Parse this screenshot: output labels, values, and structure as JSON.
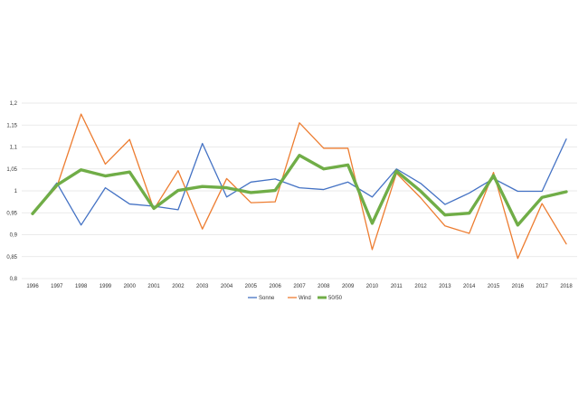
{
  "chart_data": {
    "type": "line",
    "x": [
      "1996",
      "1997",
      "1998",
      "1999",
      "2000",
      "2001",
      "2002",
      "2003",
      "2004",
      "2005",
      "2006",
      "2007",
      "2008",
      "2009",
      "2010",
      "2011",
      "2012",
      "2013",
      "2014",
      "2015",
      "2016",
      "2017",
      "2018"
    ],
    "y_ticks": [
      "0,8",
      "0,85",
      "0,9",
      "0,95",
      "1",
      "1,05",
      "1,1",
      "1,15",
      "1,2"
    ],
    "ylim": [
      0.8,
      1.2
    ],
    "grid": true,
    "legend_position": "bottom",
    "series": [
      {
        "name": "Sonne",
        "color": "#4472c4",
        "values": [
          0.948,
          1.018,
          0.922,
          1.007,
          0.97,
          0.965,
          0.957,
          1.108,
          0.986,
          1.02,
          1.027,
          1.007,
          1.003,
          1.02,
          0.986,
          1.05,
          1.017,
          0.969,
          0.995,
          1.028,
          0.999,
          0.999,
          1.118
        ]
      },
      {
        "name": "Wind",
        "color": "#ed7d31",
        "values": [
          0.948,
          1.009,
          1.175,
          1.061,
          1.117,
          0.958,
          1.046,
          0.913,
          1.028,
          0.973,
          0.975,
          1.155,
          1.097,
          1.097,
          0.866,
          1.04,
          0.984,
          0.92,
          0.903,
          1.042,
          0.846,
          0.971,
          0.879
        ]
      },
      {
        "name": "50/50",
        "color": "#70ad47",
        "values": [
          0.948,
          1.013,
          1.048,
          1.034,
          1.043,
          0.96,
          1.001,
          1.01,
          1.007,
          0.996,
          1.001,
          1.081,
          1.05,
          1.059,
          0.926,
          1.045,
          0.999,
          0.945,
          0.949,
          1.035,
          0.922,
          0.985,
          0.998
        ]
      }
    ]
  }
}
